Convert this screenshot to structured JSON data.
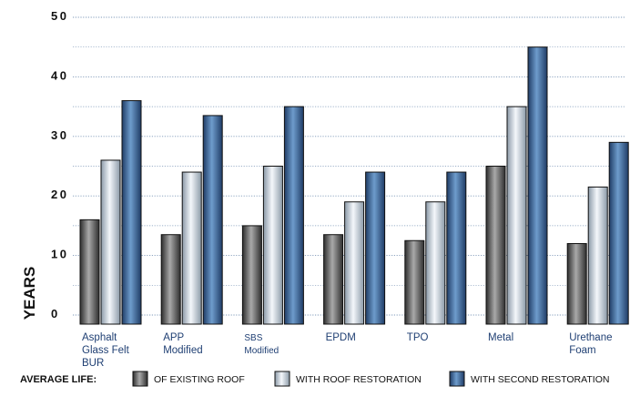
{
  "chart_data": {
    "type": "bar",
    "ylabel": "YEARS",
    "ylim": [
      0,
      50
    ],
    "yticks": [
      0,
      10,
      20,
      30,
      40,
      50
    ],
    "ytick_labels": [
      "0",
      "10",
      "20",
      "30",
      "40",
      "50"
    ],
    "grid": true,
    "legend_position": "bottom",
    "categories": [
      [
        "Asphalt",
        "Glass Felt",
        "BUR"
      ],
      [
        "APP",
        "Modified"
      ],
      [
        "SBS",
        "Modified"
      ],
      [
        "EPDM"
      ],
      [
        "TPO"
      ],
      [
        "Metal"
      ],
      [
        "Urethane",
        "Foam"
      ]
    ],
    "legend_title": "AVERAGE LIFE:",
    "series": [
      {
        "name": "OF EXISTING ROOF",
        "values": [
          16,
          13.5,
          15,
          13.5,
          12.5,
          25,
          12
        ]
      },
      {
        "name": "WITH ROOF RESTORATION",
        "values": [
          26,
          24,
          25,
          19,
          19,
          35,
          21.5
        ]
      },
      {
        "name": "WITH SECOND RESTORATION",
        "values": [
          36,
          33.5,
          35,
          24,
          24,
          45,
          29
        ]
      }
    ],
    "colors": {
      "series_dark": [
        "#2e2e2e",
        "#8b9aa8",
        "#1f3c66"
      ],
      "series_light": [
        "#a9a9a9",
        "#f4f7fb",
        "#6e9ccc"
      ],
      "grid": "#7e98b8",
      "axis_text": "#111111",
      "category_text": "#1f3f73"
    }
  }
}
